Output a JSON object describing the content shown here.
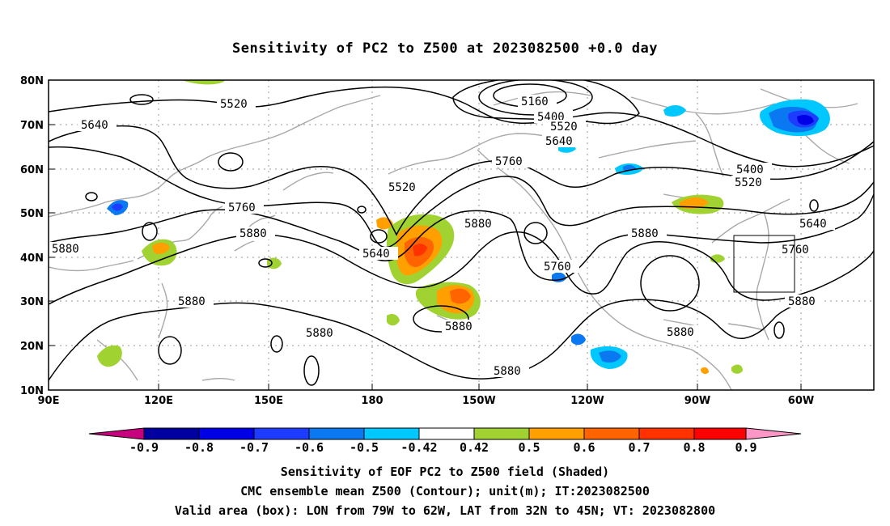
{
  "title": "Sensitivity of PC2 to Z500 at 2023082500 +0.0 day",
  "lat_ticks": [
    "80N",
    "70N",
    "60N",
    "50N",
    "40N",
    "30N",
    "20N",
    "10N"
  ],
  "lon_ticks": [
    "90E",
    "120E",
    "150E",
    "180",
    "150W",
    "120W",
    "90W",
    "60W"
  ],
  "contour_labels": [
    "5520",
    "5640",
    "5760",
    "5160",
    "5400",
    "5520",
    "5640",
    "5760",
    "5880",
    "5520",
    "5400",
    "5520",
    "5640",
    "5760",
    "5880",
    "5880",
    "5640",
    "5880",
    "5760",
    "5880",
    "5880",
    "5880",
    "5880",
    "5880",
    "5880"
  ],
  "colorbar": {
    "labels": [
      "-0.9",
      "-0.8",
      "-0.7",
      "-0.6",
      "-0.5",
      "-0.42",
      "0.42",
      "0.5",
      "0.6",
      "0.7",
      "0.8",
      "0.9"
    ],
    "colors": [
      "#c8007d",
      "#0000a0",
      "#0000e6",
      "#1e3cff",
      "#0a78f0",
      "#00c8ff",
      "#ffffff",
      "#a0d232",
      "#ffa000",
      "#ff6400",
      "#ff3200",
      "#ff0000",
      "#ff96c8"
    ]
  },
  "captions": [
    "Sensitivity of EOF PC2 to Z500 field (Shaded)",
    "CMC ensemble mean Z500 (Contour); unit(m); IT:2023082500",
    "Valid area (box): LON from 79W to 62W, LAT from 32N to 45N; VT: 2023082800"
  ]
}
